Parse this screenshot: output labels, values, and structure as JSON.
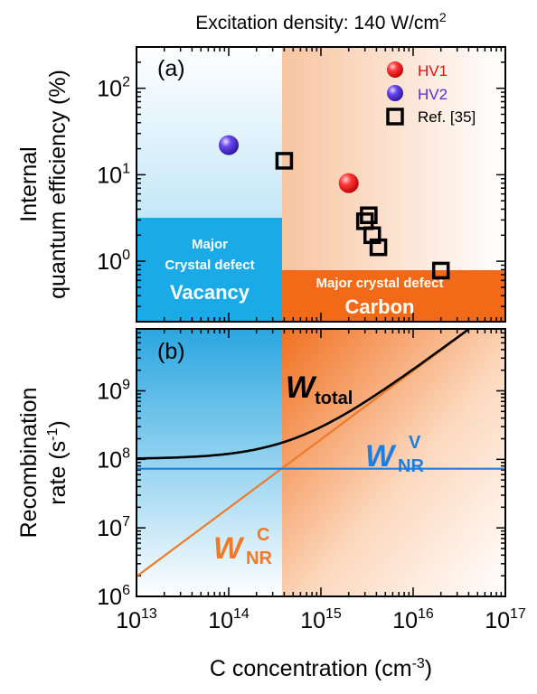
{
  "figure": {
    "header_prefix": "Excitation density: 140 W/cm",
    "header_sup": "2",
    "xlabel_main": "C concentration (cm",
    "xlabel_sup": "-3",
    "xlabel_end": ")"
  },
  "colors": {
    "vacancy": "#1aaae8",
    "carbon": "#f26a17",
    "total_line": "#000000",
    "wnr_v_line": "#1a7fe0",
    "wnr_c_line": "#ee7a2a",
    "hv1": "#e01010",
    "hv2": "#5530d8"
  },
  "chart_data": [
    {
      "type": "scatter",
      "panel_label": "(a)",
      "ylabel_lines": [
        "Internal",
        "quantum efficiency (%)"
      ],
      "x_scale": "log",
      "y_scale": "log",
      "xlim": [
        10000000000000.0,
        1e+17
      ],
      "ylim": [
        0.2,
        300
      ],
      "x_tick_labels": [],
      "y_ticks": [
        {
          "value": 1,
          "base": "10",
          "exp": "0"
        },
        {
          "value": 10,
          "base": "10",
          "exp": "1"
        },
        {
          "value": 100,
          "base": "10",
          "exp": "2"
        }
      ],
      "legend_position": "top-right",
      "series": [
        {
          "name": "HV1",
          "marker": "sphere",
          "color": "#e01010",
          "points": [
            {
              "x": 2000000000000000.0,
              "y": 8.0
            }
          ]
        },
        {
          "name": "HV2",
          "marker": "sphere",
          "color": "#5530d8",
          "points": [
            {
              "x": 100000000000000.0,
              "y": 22
            }
          ]
        },
        {
          "name": "Ref. [35]",
          "marker": "open-square",
          "color": "#000000",
          "points": [
            {
              "x": 400000000000000.0,
              "y": 14.5
            },
            {
              "x": 3300000000000000.0,
              "y": 3.4
            },
            {
              "x": 3000000000000000.0,
              "y": 2.9
            },
            {
              "x": 3600000000000000.0,
              "y": 2.0
            },
            {
              "x": 4200000000000000.0,
              "y": 1.45
            },
            {
              "x": 2e+16,
              "y": 0.78
            }
          ]
        }
      ],
      "boxes": {
        "vacancy_small": "Major",
        "vacancy_mid": "Crystal defect",
        "vacancy_big": "Vacancy",
        "carbon_small": "Major crystal defect",
        "carbon_big": "Carbon"
      }
    },
    {
      "type": "line",
      "panel_label": "(b)",
      "ylabel_line1": "Recombination",
      "ylabel_line2_main": "rate (s",
      "ylabel_line2_sup": "-1",
      "ylabel_line2_end": ")",
      "x_scale": "log",
      "y_scale": "log",
      "xlim": [
        10000000000000.0,
        1e+17
      ],
      "ylim": [
        1000000.0,
        8000000000.0
      ],
      "x_ticks": [
        {
          "value": 10000000000000.0,
          "base": "10",
          "exp": "13"
        },
        {
          "value": 100000000000000.0,
          "base": "10",
          "exp": "14"
        },
        {
          "value": 1000000000000000.0,
          "base": "10",
          "exp": "15"
        },
        {
          "value": 1e+16,
          "base": "10",
          "exp": "16"
        },
        {
          "value": 1e+17,
          "base": "10",
          "exp": "17"
        }
      ],
      "y_ticks": [
        {
          "value": 1000000.0,
          "base": "10",
          "exp": "6"
        },
        {
          "value": 10000000.0,
          "base": "10",
          "exp": "7"
        },
        {
          "value": 100000000.0,
          "base": "10",
          "exp": "8"
        },
        {
          "value": 1000000000.0,
          "base": "10",
          "exp": "9"
        }
      ],
      "region_boundary_x": 380000000000000.0,
      "series_labels": {
        "total": {
          "main": "W",
          "sub": "total"
        },
        "wnr_v": {
          "main": "W",
          "sub": "NR",
          "sup": "V"
        },
        "wnr_c": {
          "main": "W",
          "sub": "NR",
          "sup": "C"
        }
      },
      "wnr_v_value": 73000000.0,
      "wnr_c_endpoints": [
        {
          "x": 10000000000000.0,
          "y": 1950000.0
        },
        {
          "x": 5e+16,
          "y": 9800000000.0
        }
      ],
      "wtotal_endpoints": [
        {
          "x": 10000000000000.0,
          "y": 103000000.0
        },
        {
          "x": 5e+16,
          "y": 9900000000.0
        }
      ]
    }
  ]
}
